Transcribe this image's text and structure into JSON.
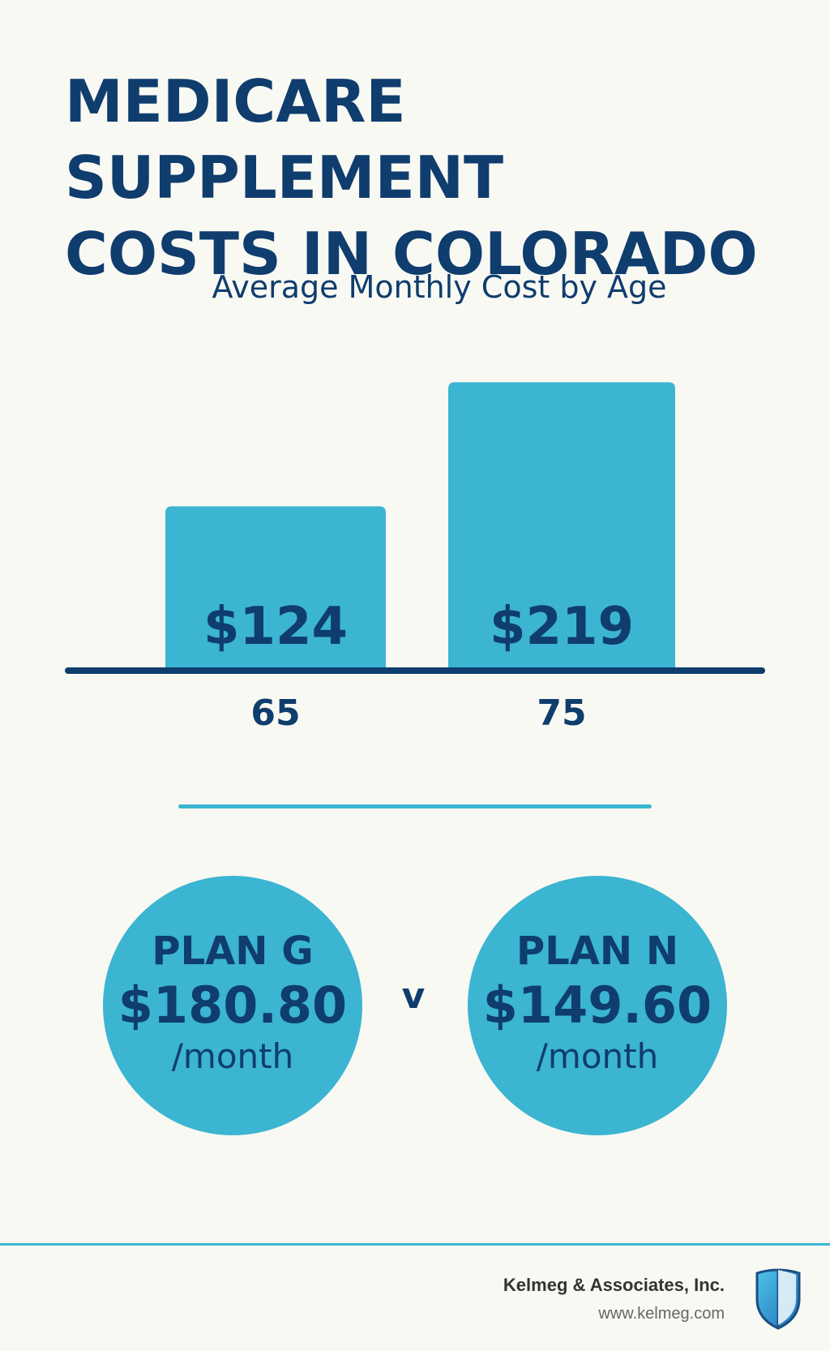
{
  "title_line1": "MEDICARE SUPPLEMENT",
  "title_line2": "COSTS IN COLORADO",
  "chart_data": {
    "type": "bar",
    "title": "Average Monthly Cost by Age",
    "categories": [
      "65",
      "75"
    ],
    "values": [
      124,
      219
    ],
    "value_labels": [
      "$124",
      "$219"
    ],
    "xlabel": "",
    "ylabel": "",
    "ylim": [
      0,
      240
    ],
    "grid": false,
    "legend": "none",
    "bar_color": "#3bb5d1",
    "text_color": "#0f3d6e"
  },
  "plans": {
    "plan_g": {
      "name": "PLAN G",
      "price": "$180.80",
      "unit": "/month"
    },
    "separator": "v",
    "plan_n": {
      "name": "PLAN N",
      "price": "$149.60",
      "unit": "/month"
    }
  },
  "footer": {
    "company": "Kelmeg & Associates, Inc.",
    "website": "www.kelmeg.com",
    "logo_icon": "shield-icon"
  },
  "colors": {
    "background": "#f9f9f3",
    "primary": "#0f3d6e",
    "accent": "#3bb5d1"
  }
}
